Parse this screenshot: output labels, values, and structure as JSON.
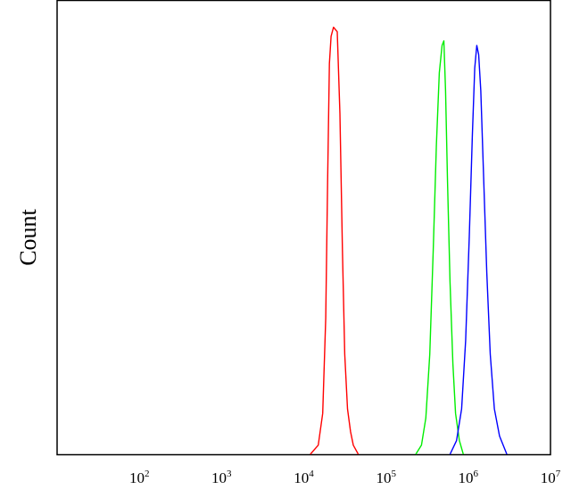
{
  "chart_data": {
    "type": "line",
    "title": "",
    "xlabel": "",
    "ylabel": "Count",
    "x_scale": "log",
    "xlim": [
      10,
      10000000
    ],
    "x_ticks": [
      {
        "value": 100,
        "base": "10",
        "exp": "2"
      },
      {
        "value": 1000,
        "base": "10",
        "exp": "3"
      },
      {
        "value": 10000,
        "base": "10",
        "exp": "4"
      },
      {
        "value": 100000,
        "base": "10",
        "exp": "5"
      },
      {
        "value": 1000000,
        "base": "10",
        "exp": "6"
      },
      {
        "value": 10000000,
        "base": "10",
        "exp": "7"
      }
    ],
    "ylim": [
      0,
      100
    ],
    "grid": false,
    "legend": "none",
    "series": [
      {
        "color": "#ff0000",
        "x": [
          12000,
          15000,
          17000,
          18500,
          19500,
          20500,
          21500,
          23000,
          25500,
          27500,
          29500,
          31500,
          34000,
          37000,
          40000,
          46000
        ],
        "y": [
          0,
          2,
          9,
          30,
          60,
          86,
          92,
          94,
          93,
          75,
          45,
          22,
          10,
          5,
          2,
          0
        ]
      },
      {
        "color": "#00ee00",
        "x": [
          230000,
          270000,
          305000,
          340000,
          375000,
          410000,
          445000,
          480000,
          505000,
          530000,
          560000,
          600000,
          650000,
          700000,
          780000,
          870000
        ],
        "y": [
          0,
          2,
          8,
          22,
          45,
          68,
          84,
          90,
          91,
          80,
          60,
          38,
          20,
          9,
          3,
          0
        ]
      },
      {
        "color": "#0000ff",
        "x": [
          600000,
          720000,
          830000,
          930000,
          1030000,
          1120000,
          1200000,
          1270000,
          1340000,
          1420000,
          1530000,
          1680000,
          1850000,
          2080000,
          2400000,
          2950000
        ],
        "y": [
          0,
          3,
          10,
          25,
          48,
          70,
          85,
          90,
          88,
          80,
          62,
          40,
          22,
          10,
          4,
          0
        ]
      }
    ]
  }
}
